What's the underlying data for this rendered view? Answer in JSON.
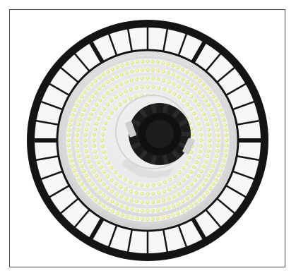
{
  "image": {
    "subject": "ufo-led-high-bay-light",
    "colors": {
      "background": "#ffffff",
      "frame_border": "#4a4a4a",
      "housing_black": "#141414",
      "fin_white": "#f7f7f7",
      "reflector_light": "#e9e9e9",
      "reflector_shadow": "#cfcfcf",
      "led_yellow": "#e6f07a",
      "led_glow": "#f7fbc9",
      "driver_black": "#1a1a1a"
    },
    "led_rings": [
      {
        "name": "ring-outer",
        "led_count": 96
      },
      {
        "name": "ring-2",
        "led_count": 84
      },
      {
        "name": "ring-3",
        "led_count": 72
      },
      {
        "name": "ring-4",
        "led_count": 60
      },
      {
        "name": "ring-inner",
        "led_count": 48
      }
    ],
    "heatsink_fin_count": 36
  }
}
